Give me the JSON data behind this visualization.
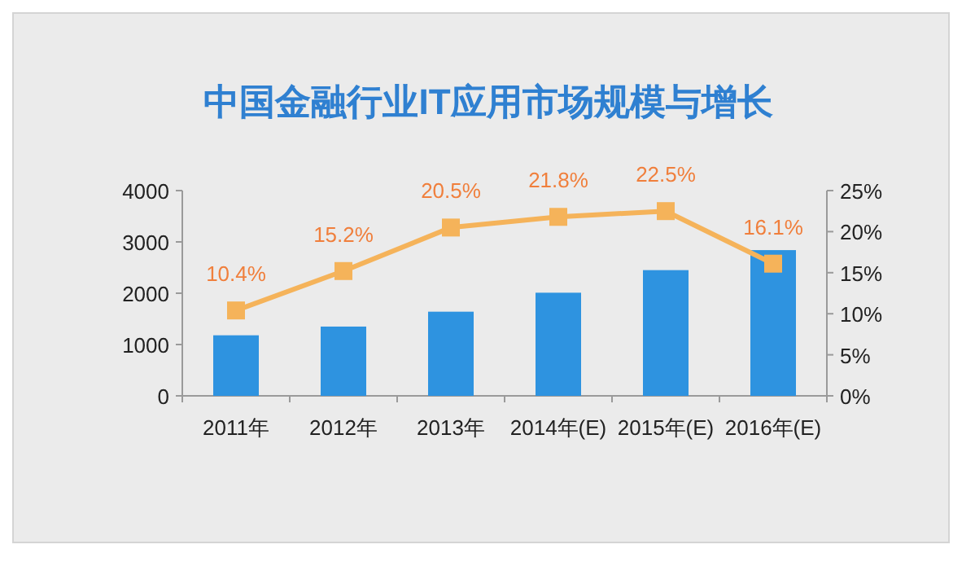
{
  "chart_data": {
    "type": "bar",
    "title": "中国金融行业IT应用市场规模与增长",
    "categories": [
      "2011年",
      "2012年",
      "2013年",
      "2014年(E)",
      "2015年(E)",
      "2016年(E)"
    ],
    "series": [
      {
        "color": "#2e93e0",
        "values": [
          1180,
          1350,
          1640,
          2010,
          2450,
          2840
        ]
      },
      {
        "type": "line",
        "axis": "y2",
        "color": "#f5b35a",
        "marker": "square",
        "values": [
          10.4,
          15.2,
          20.5,
          21.8,
          22.5,
          16.1
        ],
        "value_labels": [
          "10.4%",
          "15.2%",
          "20.5%",
          "21.8%",
          "22.5%",
          "16.1%"
        ]
      }
    ],
    "ylim": [
      0,
      4000
    ],
    "yticks": [
      0,
      1000,
      2000,
      3000,
      4000
    ],
    "y2lim": [
      0,
      25
    ],
    "y2ticks": [
      {
        "value": 0,
        "label": "0%"
      },
      {
        "value": 5,
        "label": "5%"
      },
      {
        "value": 10,
        "label": "10%"
      },
      {
        "value": 15,
        "label": "15%"
      },
      {
        "value": 20,
        "label": "20%"
      },
      {
        "value": 25,
        "label": "25%"
      }
    ],
    "grid": false
  }
}
